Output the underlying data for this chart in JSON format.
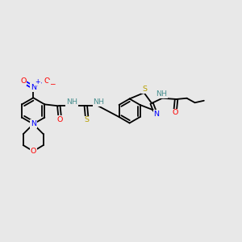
{
  "bg_color": "#e8e8e8",
  "C": "#000000",
  "N": "#0000ff",
  "O": "#ff0000",
  "S": "#b8a000",
  "H": "#4a9090",
  "lw": 1.3,
  "fs": 6.8,
  "figsize": [
    3.0,
    3.0
  ],
  "dpi": 100,
  "xlim": [
    0,
    12
  ],
  "ylim": [
    0,
    10
  ]
}
